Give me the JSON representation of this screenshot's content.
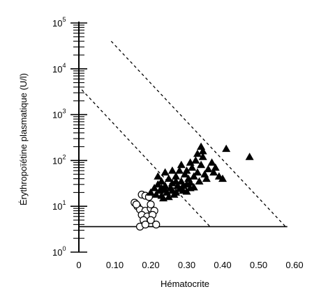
{
  "chart_data": {
    "type": "scatter",
    "title": "",
    "xlabel": "Hématocrite",
    "ylabel": "Érythropoïétine plasmatique (U/l)",
    "xlim": [
      0,
      0.6
    ],
    "ylim": [
      1,
      100000
    ],
    "yscale": "log",
    "grid": false,
    "legend": "none",
    "x_ticks": [
      "0",
      "0.10",
      "0.20",
      "0.30",
      "0.40",
      "0.50",
      "0.60"
    ],
    "y_ticks": [
      {
        "base": "10",
        "exp": "0"
      },
      {
        "base": "10",
        "exp": "1"
      },
      {
        "base": "10",
        "exp": "2"
      },
      {
        "base": "10",
        "exp": "3"
      },
      {
        "base": "10",
        "exp": "4"
      },
      {
        "base": "10",
        "exp": "5"
      }
    ],
    "series": [
      {
        "marker": "open-circle",
        "points": [
          [
            0.155,
            12
          ],
          [
            0.163,
            10
          ],
          [
            0.175,
            18
          ],
          [
            0.185,
            17
          ],
          [
            0.195,
            16
          ],
          [
            0.17,
            8.5
          ],
          [
            0.185,
            8
          ],
          [
            0.2,
            9
          ],
          [
            0.21,
            8
          ],
          [
            0.175,
            6.5
          ],
          [
            0.19,
            6
          ],
          [
            0.205,
            6.5
          ],
          [
            0.18,
            5
          ],
          [
            0.2,
            5
          ],
          [
            0.17,
            3.6
          ],
          [
            0.185,
            4
          ],
          [
            0.215,
            4
          ],
          [
            0.16,
            11
          ],
          [
            0.2,
            11
          ]
        ]
      },
      {
        "marker": "filled-triangle",
        "points": [
          [
            0.2,
            20
          ],
          [
            0.21,
            25
          ],
          [
            0.215,
            18
          ],
          [
            0.22,
            30
          ],
          [
            0.225,
            22
          ],
          [
            0.23,
            35
          ],
          [
            0.235,
            15
          ],
          [
            0.24,
            28
          ],
          [
            0.245,
            20
          ],
          [
            0.25,
            40
          ],
          [
            0.255,
            25
          ],
          [
            0.26,
            32
          ],
          [
            0.265,
            18
          ],
          [
            0.27,
            45
          ],
          [
            0.275,
            28
          ],
          [
            0.28,
            60
          ],
          [
            0.285,
            35
          ],
          [
            0.29,
            22
          ],
          [
            0.295,
            50
          ],
          [
            0.3,
            30
          ],
          [
            0.305,
            40
          ],
          [
            0.31,
            25
          ],
          [
            0.315,
            70
          ],
          [
            0.32,
            45
          ],
          [
            0.325,
            100
          ],
          [
            0.33,
            55
          ],
          [
            0.335,
            35
          ],
          [
            0.34,
            80
          ],
          [
            0.345,
            120
          ],
          [
            0.35,
            50
          ],
          [
            0.355,
            40
          ],
          [
            0.36,
            65
          ],
          [
            0.37,
            90
          ],
          [
            0.375,
            55
          ],
          [
            0.38,
            70
          ],
          [
            0.39,
            45
          ],
          [
            0.4,
            40
          ],
          [
            0.34,
            200
          ],
          [
            0.41,
            180
          ],
          [
            0.475,
            120
          ],
          [
            0.23,
            17
          ],
          [
            0.24,
            23
          ],
          [
            0.25,
            16
          ],
          [
            0.26,
            22
          ],
          [
            0.27,
            20
          ],
          [
            0.28,
            24
          ],
          [
            0.29,
            28
          ],
          [
            0.3,
            21
          ],
          [
            0.31,
            33
          ],
          [
            0.32,
            26
          ],
          [
            0.33,
            140
          ],
          [
            0.345,
            160
          ],
          [
            0.3,
            60
          ],
          [
            0.285,
            80
          ],
          [
            0.31,
            90
          ],
          [
            0.22,
            45
          ],
          [
            0.24,
            55
          ],
          [
            0.26,
            60
          ],
          [
            0.23,
            25
          ],
          [
            0.27,
            35
          ]
        ]
      }
    ],
    "reference_lines": [
      {
        "style": "solid",
        "from": [
          0,
          3.6
        ],
        "to": [
          0.58,
          3.6
        ]
      },
      {
        "style": "dashed",
        "from": [
          0.09,
          40000
        ],
        "to": [
          0.575,
          3.6
        ]
      },
      {
        "style": "dashed",
        "from": [
          0.008,
          3500
        ],
        "to": [
          0.365,
          3.6
        ]
      }
    ]
  }
}
